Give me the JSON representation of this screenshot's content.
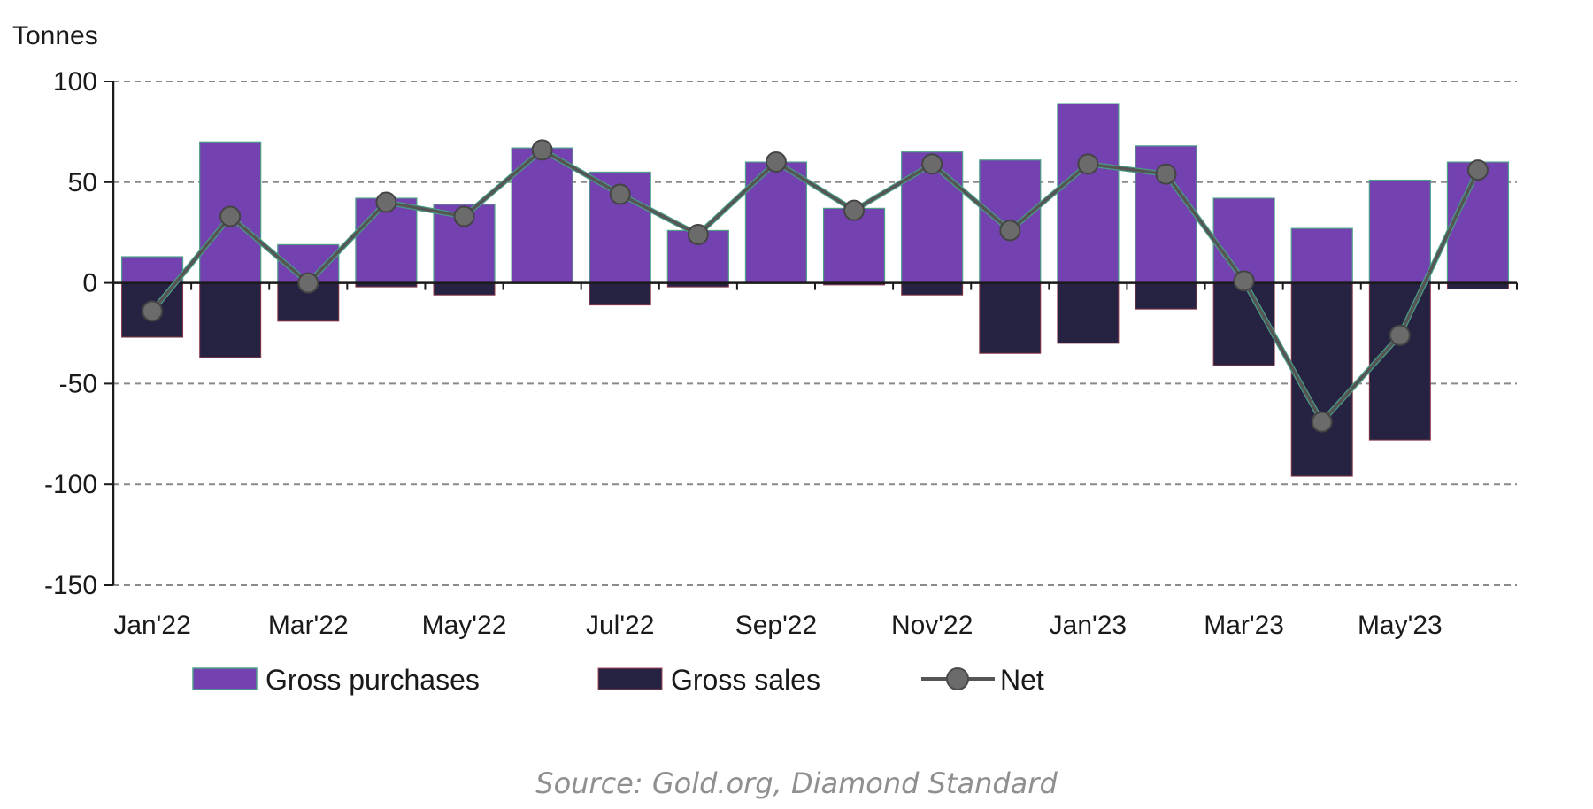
{
  "chart_data": {
    "type": "bar",
    "y_axis_title": "Tonnes",
    "ylim": [
      -150,
      100
    ],
    "y_ticks": [
      100,
      50,
      0,
      -50,
      -100,
      -150
    ],
    "y_tick_labels": [
      "100",
      "50",
      "0",
      "-50",
      "-100",
      "-150"
    ],
    "categories": [
      "Jan'22",
      "Feb'22",
      "Mar'22",
      "Apr'22",
      "May'22",
      "Jun'22",
      "Jul'22",
      "Aug'22",
      "Sep'22",
      "Oct'22",
      "Nov'22",
      "Dec'22",
      "Jan'23",
      "Feb'23",
      "Mar'23",
      "Apr'23",
      "May'23",
      "Jun'23"
    ],
    "x_tick_labels": [
      "Jan'22",
      "Mar'22",
      "May'22",
      "Jul'22",
      "Sep'22",
      "Nov'22",
      "Jan'23",
      "Mar'23",
      "May'23"
    ],
    "x_tick_indices": [
      0,
      2,
      4,
      6,
      8,
      10,
      12,
      14,
      16
    ],
    "grid": true,
    "legend_position": "bottom",
    "series": [
      {
        "name": "Gross purchases",
        "type": "bar",
        "color": "#7342b0",
        "values": [
          13,
          70,
          19,
          42,
          39,
          67,
          55,
          26,
          60,
          37,
          65,
          61,
          89,
          68,
          42,
          27,
          51,
          60
        ]
      },
      {
        "name": "Gross sales",
        "type": "bar",
        "color": "#262342",
        "values": [
          -27,
          -37,
          -19,
          -2,
          -6,
          0,
          -11,
          -2,
          0,
          -1,
          -6,
          -35,
          -30,
          -13,
          -41,
          -96,
          -78,
          -3
        ]
      },
      {
        "name": "Net",
        "type": "line",
        "color": "#555555",
        "marker_color": "#6b6b6b",
        "values": [
          -14,
          33,
          0,
          40,
          33,
          66,
          44,
          24,
          60,
          36,
          59,
          26,
          59,
          54,
          1,
          -69,
          -26,
          56
        ]
      }
    ]
  },
  "source": "Source: Gold.org, Diamond Standard"
}
